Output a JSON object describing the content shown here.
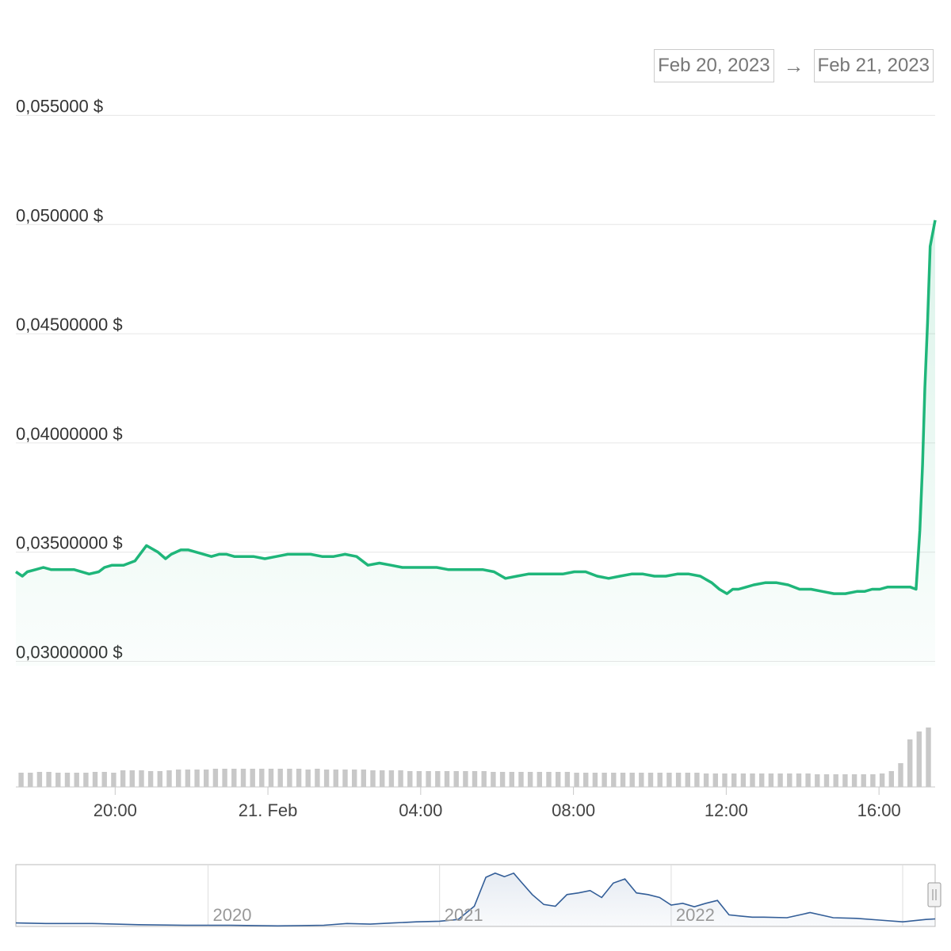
{
  "date_range": {
    "from": "Feb 20, 2023",
    "separator": "→",
    "to": "Feb 21, 2023"
  },
  "colors": {
    "price_line": "#1fb67a",
    "volume_bar": "#c8c8c8",
    "navigator_line": "#335e98",
    "grid": "#e6e6e6"
  },
  "chart_data": [
    {
      "type": "line",
      "x_unit": "hours since 17:00 on Feb 20, 2023",
      "y_ticks": [
        {
          "value": 0.03,
          "label": "0,03000000 $"
        },
        {
          "value": 0.035,
          "label": "0,03500000 $"
        },
        {
          "value": 0.04,
          "label": "0,04000000 $"
        },
        {
          "value": 0.045,
          "label": "0,04500000 $"
        },
        {
          "value": 0.05,
          "label": "0,050000 $"
        },
        {
          "value": 0.055,
          "label": "0,055000 $"
        }
      ],
      "ylim": [
        0.0298,
        0.0552
      ],
      "xlim": [
        0.78,
        24.85
      ],
      "x_ticks": [
        {
          "value": 3.38,
          "label": "20:00"
        },
        {
          "value": 7.38,
          "label": "21. Feb"
        },
        {
          "value": 11.38,
          "label": "04:00"
        },
        {
          "value": 15.38,
          "label": "08:00"
        },
        {
          "value": 19.38,
          "label": "12:00"
        },
        {
          "value": 23.38,
          "label": "16:00"
        }
      ],
      "series": [
        {
          "x": [
            0.78,
            0.95,
            1.08,
            1.3,
            1.5,
            1.7,
            2.0,
            2.3,
            2.7,
            2.95,
            3.1,
            3.3,
            3.6,
            3.9,
            4.2,
            4.5,
            4.7,
            4.85,
            5.1,
            5.3,
            5.5,
            5.7,
            5.9,
            6.1,
            6.3,
            6.5,
            6.7,
            7.0,
            7.3,
            7.6,
            7.9,
            8.2,
            8.5,
            8.8,
            9.1,
            9.4,
            9.7,
            10.0,
            10.3,
            10.6,
            10.9,
            11.2,
            11.5,
            11.8,
            12.1,
            12.4,
            12.7,
            13.0,
            13.3,
            13.6,
            13.9,
            14.2,
            14.5,
            14.8,
            15.1,
            15.4,
            15.7,
            16.0,
            16.3,
            16.6,
            16.9,
            17.2,
            17.5,
            17.8,
            18.1,
            18.4,
            18.7,
            19.0,
            19.2,
            19.4,
            19.55,
            19.7,
            19.9,
            20.1,
            20.4,
            20.7,
            21.0,
            21.3,
            21.6,
            21.9,
            22.2,
            22.5,
            22.8,
            23.0,
            23.2,
            23.4,
            23.6,
            23.8,
            24.0,
            24.2,
            24.35,
            24.45,
            24.52,
            24.58,
            24.65,
            24.72,
            24.85
          ],
          "y": [
            0.0341,
            0.0339,
            0.0341,
            0.0342,
            0.0343,
            0.0342,
            0.0342,
            0.0342,
            0.034,
            0.0341,
            0.0343,
            0.0344,
            0.0344,
            0.0346,
            0.0353,
            0.035,
            0.0347,
            0.0349,
            0.0351,
            0.0351,
            0.035,
            0.0349,
            0.0348,
            0.0349,
            0.0349,
            0.0348,
            0.0348,
            0.0348,
            0.0347,
            0.0348,
            0.0349,
            0.0349,
            0.0349,
            0.0348,
            0.0348,
            0.0349,
            0.0348,
            0.0344,
            0.0345,
            0.0344,
            0.0343,
            0.0343,
            0.0343,
            0.0343,
            0.0342,
            0.0342,
            0.0342,
            0.0342,
            0.0341,
            0.0338,
            0.0339,
            0.034,
            0.034,
            0.034,
            0.034,
            0.0341,
            0.0341,
            0.0339,
            0.0338,
            0.0339,
            0.034,
            0.034,
            0.0339,
            0.0339,
            0.034,
            0.034,
            0.0339,
            0.0336,
            0.0333,
            0.0331,
            0.0333,
            0.0333,
            0.0334,
            0.0335,
            0.0336,
            0.0336,
            0.0335,
            0.0333,
            0.0333,
            0.0332,
            0.0331,
            0.0331,
            0.0332,
            0.0332,
            0.0333,
            0.0333,
            0.0334,
            0.0334,
            0.0334,
            0.0334,
            0.0333,
            0.036,
            0.039,
            0.0425,
            0.0455,
            0.049,
            0.0502
          ]
        }
      ],
      "volume": {
        "x_start": 0.85,
        "x_end": 24.85,
        "heights": [
          0.18,
          0.18,
          0.19,
          0.19,
          0.18,
          0.18,
          0.18,
          0.18,
          0.19,
          0.19,
          0.18,
          0.21,
          0.21,
          0.21,
          0.2,
          0.2,
          0.21,
          0.22,
          0.22,
          0.22,
          0.22,
          0.23,
          0.23,
          0.23,
          0.23,
          0.23,
          0.23,
          0.23,
          0.23,
          0.23,
          0.23,
          0.22,
          0.23,
          0.22,
          0.22,
          0.22,
          0.22,
          0.22,
          0.21,
          0.21,
          0.21,
          0.21,
          0.2,
          0.2,
          0.2,
          0.2,
          0.2,
          0.2,
          0.2,
          0.2,
          0.2,
          0.19,
          0.19,
          0.19,
          0.19,
          0.19,
          0.19,
          0.19,
          0.19,
          0.19,
          0.18,
          0.18,
          0.18,
          0.18,
          0.18,
          0.18,
          0.18,
          0.18,
          0.18,
          0.18,
          0.18,
          0.18,
          0.18,
          0.18,
          0.17,
          0.17,
          0.17,
          0.17,
          0.17,
          0.17,
          0.17,
          0.17,
          0.17,
          0.17,
          0.17,
          0.17,
          0.16,
          0.16,
          0.16,
          0.16,
          0.16,
          0.16,
          0.16,
          0.17,
          0.2,
          0.3,
          0.6,
          0.7,
          0.75
        ]
      }
    },
    {
      "type": "area",
      "x_ticks": [
        {
          "value": 2020.0,
          "label": "2020"
        },
        {
          "value": 2021.0,
          "label": "2021"
        },
        {
          "value": 2022.0,
          "label": "2022"
        }
      ],
      "xlim": [
        2019.17,
        2023.14
      ],
      "ylim": [
        0,
        1
      ],
      "series": [
        {
          "x": [
            2019.17,
            2019.3,
            2019.5,
            2019.7,
            2019.9,
            2020.1,
            2020.3,
            2020.5,
            2020.6,
            2020.7,
            2020.8,
            2020.9,
            2021.0,
            2021.08,
            2021.15,
            2021.2,
            2021.24,
            2021.28,
            2021.32,
            2021.35,
            2021.4,
            2021.45,
            2021.5,
            2021.55,
            2021.6,
            2021.65,
            2021.7,
            2021.75,
            2021.8,
            2021.85,
            2021.9,
            2021.95,
            2022.0,
            2022.05,
            2022.1,
            2022.15,
            2022.2,
            2022.25,
            2022.3,
            2022.35,
            2022.4,
            2022.5,
            2022.6,
            2022.7,
            2022.8,
            2022.9,
            2023.0,
            2023.05,
            2023.1,
            2023.14
          ],
          "y": [
            0.06,
            0.05,
            0.05,
            0.03,
            0.02,
            0.02,
            0.01,
            0.02,
            0.05,
            0.04,
            0.06,
            0.08,
            0.09,
            0.12,
            0.35,
            0.85,
            0.92,
            0.86,
            0.92,
            0.78,
            0.55,
            0.38,
            0.35,
            0.55,
            0.58,
            0.62,
            0.5,
            0.75,
            0.82,
            0.58,
            0.55,
            0.5,
            0.37,
            0.4,
            0.34,
            0.4,
            0.45,
            0.2,
            0.18,
            0.16,
            0.16,
            0.15,
            0.24,
            0.15,
            0.14,
            0.11,
            0.08,
            0.1,
            0.12,
            0.13
          ]
        }
      ]
    }
  ]
}
